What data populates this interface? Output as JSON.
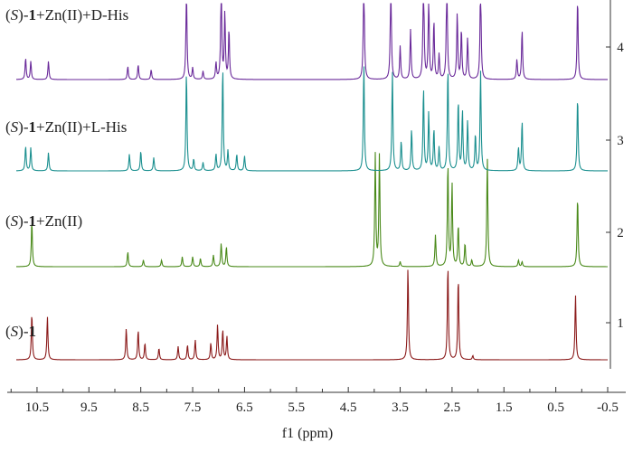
{
  "chart_data": {
    "type": "line",
    "title": "",
    "xlabel": "f1 (ppm)",
    "ylabel": "",
    "xlim": [
      10.9,
      -0.5
    ],
    "x_reversed": true,
    "xticks": [
      "10.5",
      "9.5",
      "8.5",
      "7.5",
      "6.5",
      "5.5",
      "4.5",
      "3.5",
      "2.5",
      "1.5",
      "0.5",
      "-0.5"
    ],
    "xtick_values": [
      10.5,
      9.5,
      8.5,
      7.5,
      6.5,
      5.5,
      4.5,
      3.5,
      2.5,
      1.5,
      0.5,
      -0.5
    ],
    "right_axis_ticks": [
      "1",
      "2",
      "3",
      "4"
    ],
    "grid": false,
    "series": [
      {
        "name": "(S)-1",
        "label_parts": [
          "(",
          "S",
          ")-",
          "1",
          ""
        ],
        "index": "1",
        "color": "#8b1a1a",
        "peaks": [
          {
            "ppm": 10.6,
            "h": 0.56
          },
          {
            "ppm": 10.3,
            "h": 0.52
          },
          {
            "ppm": 8.78,
            "h": 0.38
          },
          {
            "ppm": 8.55,
            "h": 0.36
          },
          {
            "ppm": 8.42,
            "h": 0.2
          },
          {
            "ppm": 8.15,
            "h": 0.14
          },
          {
            "ppm": 7.78,
            "h": 0.16
          },
          {
            "ppm": 7.6,
            "h": 0.18
          },
          {
            "ppm": 7.45,
            "h": 0.24
          },
          {
            "ppm": 7.15,
            "h": 0.2
          },
          {
            "ppm": 7.02,
            "h": 0.42
          },
          {
            "ppm": 6.92,
            "h": 0.36
          },
          {
            "ppm": 6.84,
            "h": 0.28
          },
          {
            "ppm": 3.35,
            "h": 1.12
          },
          {
            "ppm": 2.58,
            "h": 1.15
          },
          {
            "ppm": 2.38,
            "h": 1.0
          },
          {
            "ppm": 2.1,
            "h": 0.05
          },
          {
            "ppm": 0.12,
            "h": 0.78
          }
        ]
      },
      {
        "name": "(S)-1+Zn(II)",
        "label_parts": [
          "(",
          "S",
          ")-",
          "1",
          "+Zn(II)"
        ],
        "index": "2",
        "color": "#4a8a1a",
        "peaks": [
          {
            "ppm": 10.6,
            "h": 0.55
          },
          {
            "ppm": 8.75,
            "h": 0.18
          },
          {
            "ppm": 8.45,
            "h": 0.08
          },
          {
            "ppm": 8.1,
            "h": 0.08
          },
          {
            "ppm": 7.7,
            "h": 0.12
          },
          {
            "ppm": 7.5,
            "h": 0.12
          },
          {
            "ppm": 7.35,
            "h": 0.1
          },
          {
            "ppm": 7.1,
            "h": 0.14
          },
          {
            "ppm": 6.95,
            "h": 0.28
          },
          {
            "ppm": 6.85,
            "h": 0.24
          },
          {
            "ppm": 3.98,
            "h": 1.35
          },
          {
            "ppm": 3.9,
            "h": 1.35
          },
          {
            "ppm": 3.5,
            "h": 0.06
          },
          {
            "ppm": 2.82,
            "h": 0.38
          },
          {
            "ppm": 2.58,
            "h": 1.25
          },
          {
            "ppm": 2.5,
            "h": 1.0
          },
          {
            "ppm": 2.38,
            "h": 0.5
          },
          {
            "ppm": 2.25,
            "h": 0.28
          },
          {
            "ppm": 2.12,
            "h": 0.08
          },
          {
            "ppm": 1.82,
            "h": 1.32
          },
          {
            "ppm": 1.22,
            "h": 0.08
          },
          {
            "ppm": 1.15,
            "h": 0.06
          },
          {
            "ppm": 0.08,
            "h": 0.85
          }
        ]
      },
      {
        "name": "(S)-1+Zn(II)+L-His",
        "label_parts": [
          "(",
          "S",
          ")-",
          "1",
          "+Zn(II)+L-His"
        ],
        "index": "3",
        "color": "#1a8f8f",
        "peaks": [
          {
            "ppm": 10.72,
            "h": 0.3
          },
          {
            "ppm": 10.62,
            "h": 0.28
          },
          {
            "ppm": 10.28,
            "h": 0.22
          },
          {
            "ppm": 8.72,
            "h": 0.2
          },
          {
            "ppm": 8.5,
            "h": 0.24
          },
          {
            "ppm": 8.25,
            "h": 0.16
          },
          {
            "ppm": 7.62,
            "h": 1.2
          },
          {
            "ppm": 7.48,
            "h": 0.14
          },
          {
            "ppm": 7.3,
            "h": 0.1
          },
          {
            "ppm": 7.05,
            "h": 0.2
          },
          {
            "ppm": 6.92,
            "h": 1.25
          },
          {
            "ppm": 6.82,
            "h": 0.24
          },
          {
            "ppm": 6.65,
            "h": 0.2
          },
          {
            "ppm": 6.5,
            "h": 0.18
          },
          {
            "ppm": 4.2,
            "h": 1.3
          },
          {
            "ppm": 3.65,
            "h": 1.2
          },
          {
            "ppm": 3.48,
            "h": 0.36
          },
          {
            "ppm": 3.28,
            "h": 0.5
          },
          {
            "ppm": 3.05,
            "h": 1.0
          },
          {
            "ppm": 2.95,
            "h": 0.7
          },
          {
            "ppm": 2.85,
            "h": 0.5
          },
          {
            "ppm": 2.75,
            "h": 0.28
          },
          {
            "ppm": 2.58,
            "h": 1.25
          },
          {
            "ppm": 2.38,
            "h": 0.85
          },
          {
            "ppm": 2.3,
            "h": 0.72
          },
          {
            "ppm": 2.2,
            "h": 0.6
          },
          {
            "ppm": 2.05,
            "h": 0.44
          },
          {
            "ppm": 1.95,
            "h": 1.2
          },
          {
            "ppm": 1.22,
            "h": 0.28
          },
          {
            "ppm": 1.15,
            "h": 0.6
          },
          {
            "ppm": 0.08,
            "h": 0.9
          }
        ]
      },
      {
        "name": "(S)-1+Zn(II)+D-His",
        "label_parts": [
          "(",
          "S",
          ")-",
          "1",
          "+Zn(II)+D-His"
        ],
        "index": "4",
        "color": "#6a2a9a",
        "peaks": [
          {
            "ppm": 10.72,
            "h": 0.26
          },
          {
            "ppm": 10.62,
            "h": 0.22
          },
          {
            "ppm": 10.28,
            "h": 0.22
          },
          {
            "ppm": 8.75,
            "h": 0.16
          },
          {
            "ppm": 8.55,
            "h": 0.18
          },
          {
            "ppm": 8.3,
            "h": 0.12
          },
          {
            "ppm": 7.62,
            "h": 1.1
          },
          {
            "ppm": 7.5,
            "h": 0.14
          },
          {
            "ppm": 7.3,
            "h": 0.1
          },
          {
            "ppm": 7.05,
            "h": 0.2
          },
          {
            "ppm": 6.95,
            "h": 1.2
          },
          {
            "ppm": 6.88,
            "h": 0.8
          },
          {
            "ppm": 6.8,
            "h": 0.6
          },
          {
            "ppm": 4.2,
            "h": 1.35
          },
          {
            "ppm": 3.68,
            "h": 1.3
          },
          {
            "ppm": 3.5,
            "h": 0.4
          },
          {
            "ppm": 3.3,
            "h": 0.6
          },
          {
            "ppm": 3.05,
            "h": 1.4
          },
          {
            "ppm": 2.95,
            "h": 1.0
          },
          {
            "ppm": 2.85,
            "h": 0.7
          },
          {
            "ppm": 2.75,
            "h": 0.3
          },
          {
            "ppm": 2.6,
            "h": 1.35
          },
          {
            "ppm": 2.4,
            "h": 0.8
          },
          {
            "ppm": 2.32,
            "h": 0.6
          },
          {
            "ppm": 2.2,
            "h": 0.5
          },
          {
            "ppm": 1.95,
            "h": 1.25
          },
          {
            "ppm": 1.25,
            "h": 0.24
          },
          {
            "ppm": 1.15,
            "h": 0.6
          },
          {
            "ppm": 0.08,
            "h": 0.98
          }
        ]
      }
    ]
  }
}
